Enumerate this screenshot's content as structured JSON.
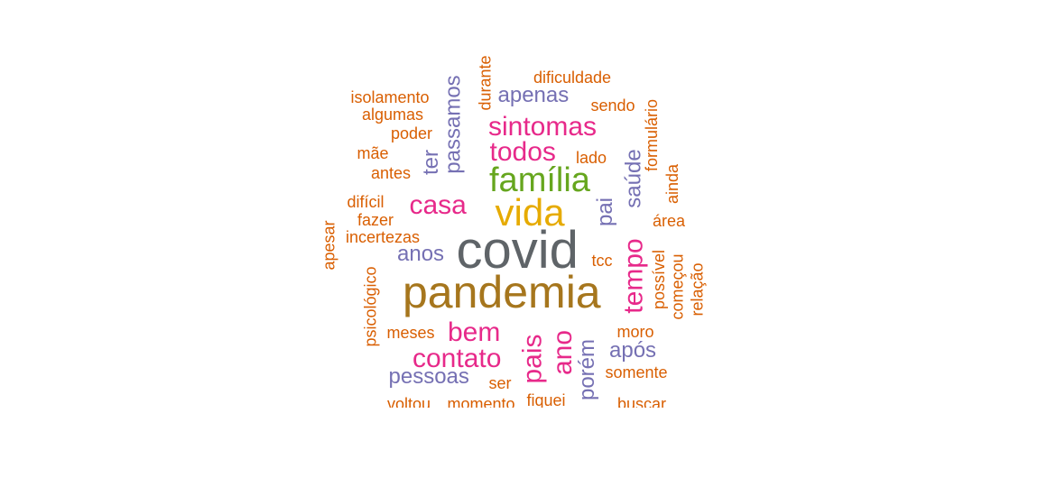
{
  "word_cloud": {
    "colors": {
      "gray": "#5f6468",
      "brown": "#a6761d",
      "gold": "#e6ab02",
      "green": "#66a61e",
      "magenta": "#e7298a",
      "purple": "#7570b3",
      "orange": "#d95f02"
    },
    "words": [
      {
        "text": "covid",
        "color": "gray"
      },
      {
        "text": "pandemia",
        "color": "brown"
      },
      {
        "text": "vida",
        "color": "gold"
      },
      {
        "text": "família",
        "color": "green"
      },
      {
        "text": "sintomas",
        "color": "magenta"
      },
      {
        "text": "todos",
        "color": "magenta"
      },
      {
        "text": "casa",
        "color": "magenta"
      },
      {
        "text": "bem",
        "color": "magenta"
      },
      {
        "text": "contato",
        "color": "magenta"
      },
      {
        "text": "pais",
        "color": "magenta"
      },
      {
        "text": "ano",
        "color": "magenta"
      },
      {
        "text": "tempo",
        "color": "magenta"
      },
      {
        "text": "apenas",
        "color": "purple"
      },
      {
        "text": "passamos",
        "color": "purple"
      },
      {
        "text": "ter",
        "color": "purple"
      },
      {
        "text": "anos",
        "color": "purple"
      },
      {
        "text": "pessoas",
        "color": "purple"
      },
      {
        "text": "porém",
        "color": "purple"
      },
      {
        "text": "após",
        "color": "purple"
      },
      {
        "text": "pai",
        "color": "purple"
      },
      {
        "text": "saúde",
        "color": "purple"
      },
      {
        "text": "dificuldade",
        "color": "orange"
      },
      {
        "text": "durante",
        "color": "orange"
      },
      {
        "text": "isolamento",
        "color": "orange"
      },
      {
        "text": "algumas",
        "color": "orange"
      },
      {
        "text": "poder",
        "color": "orange"
      },
      {
        "text": "mãe",
        "color": "orange"
      },
      {
        "text": "antes",
        "color": "orange"
      },
      {
        "text": "difícil",
        "color": "orange"
      },
      {
        "text": "fazer",
        "color": "orange"
      },
      {
        "text": "incertezas",
        "color": "orange"
      },
      {
        "text": "apesar",
        "color": "orange"
      },
      {
        "text": "psicológico",
        "color": "orange"
      },
      {
        "text": "meses",
        "color": "orange"
      },
      {
        "text": "ser",
        "color": "orange"
      },
      {
        "text": "voltou",
        "color": "orange"
      },
      {
        "text": "momento",
        "color": "orange"
      },
      {
        "text": "fiquei",
        "color": "orange"
      },
      {
        "text": "buscar",
        "color": "orange"
      },
      {
        "text": "somente",
        "color": "orange"
      },
      {
        "text": "moro",
        "color": "orange"
      },
      {
        "text": "tcc",
        "color": "orange"
      },
      {
        "text": "possível",
        "color": "orange"
      },
      {
        "text": "começou",
        "color": "orange"
      },
      {
        "text": "relação",
        "color": "orange"
      },
      {
        "text": "área",
        "color": "orange"
      },
      {
        "text": "ainda",
        "color": "orange"
      },
      {
        "text": "formulário",
        "color": "orange"
      },
      {
        "text": "sendo",
        "color": "orange"
      },
      {
        "text": "lado",
        "color": "orange"
      }
    ]
  }
}
